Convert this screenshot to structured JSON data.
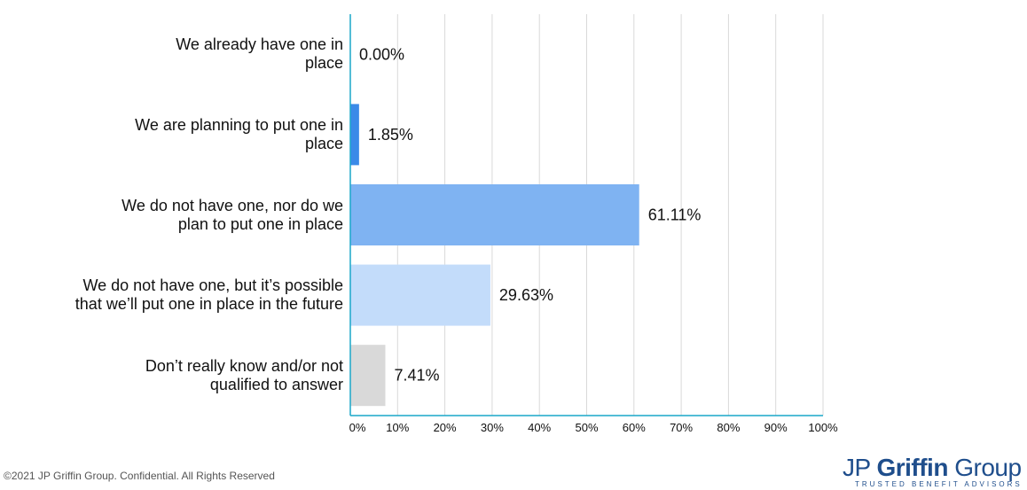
{
  "chart_data": {
    "type": "bar",
    "orientation": "horizontal",
    "categories": [
      [
        "We already have one in",
        "place"
      ],
      [
        "We are planning to put one in",
        "place"
      ],
      [
        "We do not have one, nor do we",
        "plan to put one in place"
      ],
      [
        "We do not have one, but it’s possible",
        "that we’ll put one in place in the future"
      ],
      [
        "Don’t really know and/or not",
        "qualified to answer"
      ]
    ],
    "values": [
      0.0,
      1.85,
      61.11,
      29.63,
      7.41
    ],
    "value_labels": [
      "0.00%",
      "1.85%",
      "61.11%",
      "29.63%",
      "7.41%"
    ],
    "bar_colors": [
      "#3b8ae8",
      "#3b8ae8",
      "#7fb3f2",
      "#c3dcfa",
      "#d9d9d9"
    ],
    "xlim": [
      0,
      100
    ],
    "x_ticks": [
      "0%",
      "10%",
      "20%",
      "30%",
      "40%",
      "50%",
      "60%",
      "70%",
      "80%",
      "90%",
      "100%"
    ],
    "grid": true,
    "axis_color": "#1aa7c9"
  },
  "footer": {
    "copyright": "©2021 JP Griffin Group. Confidential. All Rights Reserved"
  },
  "logo": {
    "name_part1": "JP ",
    "name_part2": "Griffin",
    "name_part3": " Group",
    "tagline": "TRUSTED BENEFIT ADVISORS"
  }
}
